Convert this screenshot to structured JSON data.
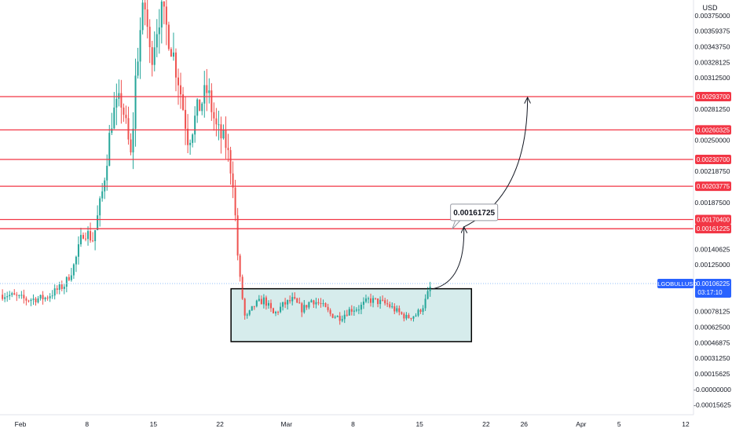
{
  "chart_data": {
    "type": "candlestick",
    "symbol": "ALGOBULLUSD",
    "currency": "USD",
    "last_price": "0.00106225",
    "countdown": "03:17:10",
    "y_ticks": [
      "0.00375000",
      "0.00359375",
      "0.00343750",
      "0.00328125",
      "0.00312500",
      "0.00281250",
      "0.00250000",
      "0.00218750",
      "0.00187500",
      "0.00140625",
      "0.00125000",
      "0.00078125",
      "0.00062500",
      "0.00046875",
      "0.00031250",
      "0.00015625",
      "-0.00000000",
      "-0.00015625"
    ],
    "y_range": [
      -0.00018,
      0.00385
    ],
    "x_ticks": [
      {
        "label": "Feb",
        "day": 0
      },
      {
        "label": "8",
        "day": 7
      },
      {
        "label": "15",
        "day": 14
      },
      {
        "label": "22",
        "day": 21
      },
      {
        "label": "Mar",
        "day": 28
      },
      {
        "label": "8",
        "day": 35
      },
      {
        "label": "15",
        "day": 42
      },
      {
        "label": "22",
        "day": 49
      },
      {
        "label": "26",
        "day": 53
      },
      {
        "label": "Apr",
        "day": 59
      },
      {
        "label": "5",
        "day": 63
      },
      {
        "label": "12",
        "day": 70
      }
    ],
    "price_path": [
      [
        -2,
        0.00095
      ],
      [
        0,
        0.0009
      ],
      [
        2,
        0.00092
      ],
      [
        4,
        0.00105
      ],
      [
        5,
        0.00125
      ],
      [
        6,
        0.0016
      ],
      [
        7,
        0.0015
      ],
      [
        8,
        0.002
      ],
      [
        9,
        0.00275
      ],
      [
        10,
        0.0029
      ],
      [
        11,
        0.0023
      ],
      [
        11.5,
        0.0032
      ],
      [
        12,
        0.00365
      ],
      [
        12.5,
        0.00385
      ],
      [
        13,
        0.0033
      ],
      [
        14,
        0.0038
      ],
      [
        15,
        0.00355
      ],
      [
        16,
        0.0031
      ],
      [
        17,
        0.0025
      ],
      [
        18,
        0.0028
      ],
      [
        19,
        0.003
      ],
      [
        20,
        0.0026
      ],
      [
        21,
        0.00245
      ],
      [
        21.7,
        0.0021
      ],
      [
        22.3,
        0.0012
      ],
      [
        23,
        0.0007
      ],
      [
        24,
        0.00085
      ],
      [
        25,
        0.0009
      ],
      [
        26,
        0.00075
      ],
      [
        27,
        0.00085
      ],
      [
        28,
        0.0009
      ],
      [
        29,
        0.0008
      ],
      [
        30,
        0.0009
      ],
      [
        31,
        0.00085
      ],
      [
        32,
        0.00075
      ],
      [
        33,
        0.00072
      ],
      [
        34,
        0.0008
      ],
      [
        35,
        0.00082
      ],
      [
        36,
        0.0009
      ],
      [
        37,
        0.00088
      ],
      [
        38,
        0.00085
      ],
      [
        39,
        0.00078
      ],
      [
        40,
        0.00072
      ],
      [
        41,
        0.00075
      ],
      [
        41.8,
        0.00085
      ],
      [
        42.6,
        0.00106
      ]
    ],
    "resistance_levels": [
      {
        "value": 0.002937,
        "label": "0.00293700"
      },
      {
        "value": 0.00260325,
        "label": "0.00260325"
      },
      {
        "value": 0.002307,
        "label": "0.00230700"
      },
      {
        "value": 0.00203775,
        "label": "0.00203775"
      },
      {
        "value": 0.001704,
        "label": "0.00170400"
      },
      {
        "value": 0.00161225,
        "label": "0.00161225"
      }
    ],
    "range_box": {
      "x_start_day": 21.5,
      "x_end_day": 46.8,
      "y_low": 0.00048,
      "y_high": 0.00101
    },
    "projection": {
      "label": "0.00161725",
      "arrow1": {
        "from": [
          42.8,
          0.00101
        ],
        "to": [
          46.0,
          0.00163
        ]
      },
      "arrow2": {
        "from": [
          46.0,
          0.00163
        ],
        "to": [
          52.7,
          0.00293
        ]
      },
      "label_at": [
        44.6,
        0.00178
      ]
    },
    "colors": {
      "up": "#26a69a",
      "down": "#ef5350",
      "level": "#f23645",
      "box_fill": "#c8e6e6",
      "accent": "#2962ff"
    }
  }
}
